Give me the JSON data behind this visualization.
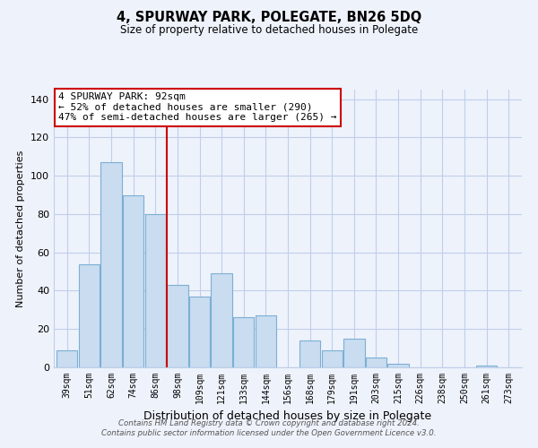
{
  "title": "4, SPURWAY PARK, POLEGATE, BN26 5DQ",
  "subtitle": "Size of property relative to detached houses in Polegate",
  "xlabel": "Distribution of detached houses by size in Polegate",
  "ylabel": "Number of detached properties",
  "categories": [
    "39sqm",
    "51sqm",
    "62sqm",
    "74sqm",
    "86sqm",
    "98sqm",
    "109sqm",
    "121sqm",
    "133sqm",
    "144sqm",
    "156sqm",
    "168sqm",
    "179sqm",
    "191sqm",
    "203sqm",
    "215sqm",
    "226sqm",
    "238sqm",
    "250sqm",
    "261sqm",
    "273sqm"
  ],
  "values": [
    9,
    54,
    107,
    90,
    80,
    43,
    37,
    49,
    26,
    27,
    0,
    14,
    9,
    15,
    5,
    2,
    0,
    0,
    0,
    1,
    0
  ],
  "bar_color": "#c9dcf0",
  "bar_edge_color": "#7bafd4",
  "vline_color": "#cc0000",
  "annotation_title": "4 SPURWAY PARK: 92sqm",
  "annotation_line1": "← 52% of detached houses are smaller (290)",
  "annotation_line2": "47% of semi-detached houses are larger (265) →",
  "annotation_box_color": "white",
  "annotation_box_edge": "#cc0000",
  "ylim": [
    0,
    145
  ],
  "yticks": [
    0,
    20,
    40,
    60,
    80,
    100,
    120,
    140
  ],
  "footer1": "Contains HM Land Registry data © Crown copyright and database right 2024.",
  "footer2": "Contains public sector information licensed under the Open Government Licence v3.0.",
  "bg_color": "#eef2fb"
}
